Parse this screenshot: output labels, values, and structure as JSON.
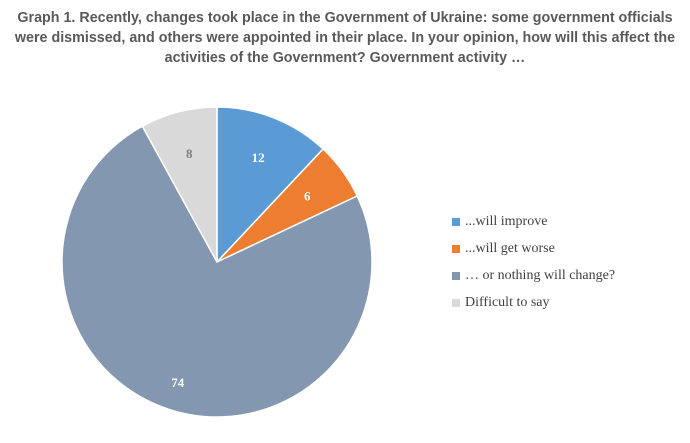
{
  "chart_data": {
    "type": "pie",
    "title": "Graph 1. Recently, changes took place in the Government of Ukraine: some government officials were dismissed, and others were appointed in their place. In your opinion, how will this affect the activities of the Government? Government activity …",
    "categories": [
      "...will improve",
      "...will get worse",
      "… or nothing will change?",
      "Difficult to say"
    ],
    "values": [
      12,
      6,
      74,
      8
    ],
    "colors": [
      "#5b9bd5",
      "#ed7d31",
      "#8497b0",
      "#d9d9d9"
    ],
    "label_colors": [
      "#ffffff",
      "#ffffff",
      "#ffffff",
      "#7f7f7f"
    ],
    "start_angle_deg": 0,
    "direction": "clockwise",
    "legend_position": "right"
  }
}
